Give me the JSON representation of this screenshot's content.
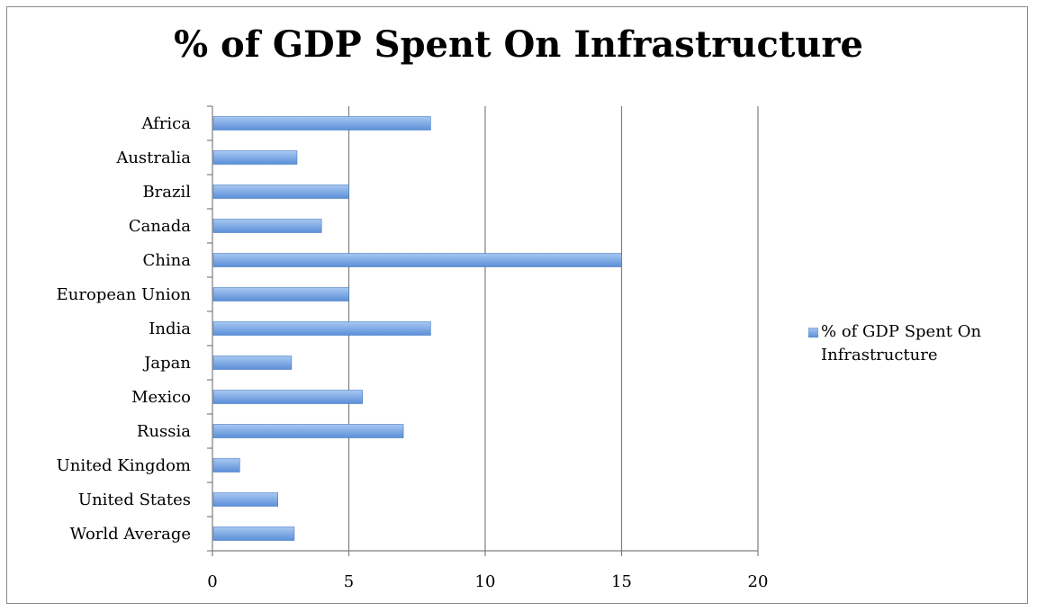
{
  "colors": {
    "bar_top": "#a9c8f2",
    "bar_bottom": "#5b8fd8",
    "bar_edge": "#4a7cc4",
    "grid": "#7f7f7f",
    "axis": "#7f7f7f"
  },
  "chart_data": {
    "type": "bar",
    "orientation": "horizontal",
    "title": "% of GDP Spent On Infrastructure",
    "xlabel": "",
    "ylabel": "",
    "xlim": [
      0,
      20
    ],
    "x_ticks": [
      0,
      5,
      10,
      15,
      20
    ],
    "grid": "vertical major gridlines",
    "legend_position": "right",
    "categories": [
      "Africa",
      "Australia",
      "Brazil",
      "Canada",
      "China",
      "European Union",
      "India",
      "Japan",
      "Mexico",
      "Russia",
      "United Kingdom",
      "United States",
      "World Average"
    ],
    "series": [
      {
        "name": "% of GDP Spent On Infrastructure",
        "values": [
          8,
          3.1,
          5,
          4,
          15,
          5,
          8,
          2.9,
          5.5,
          7,
          1,
          2.4,
          3
        ]
      }
    ]
  }
}
